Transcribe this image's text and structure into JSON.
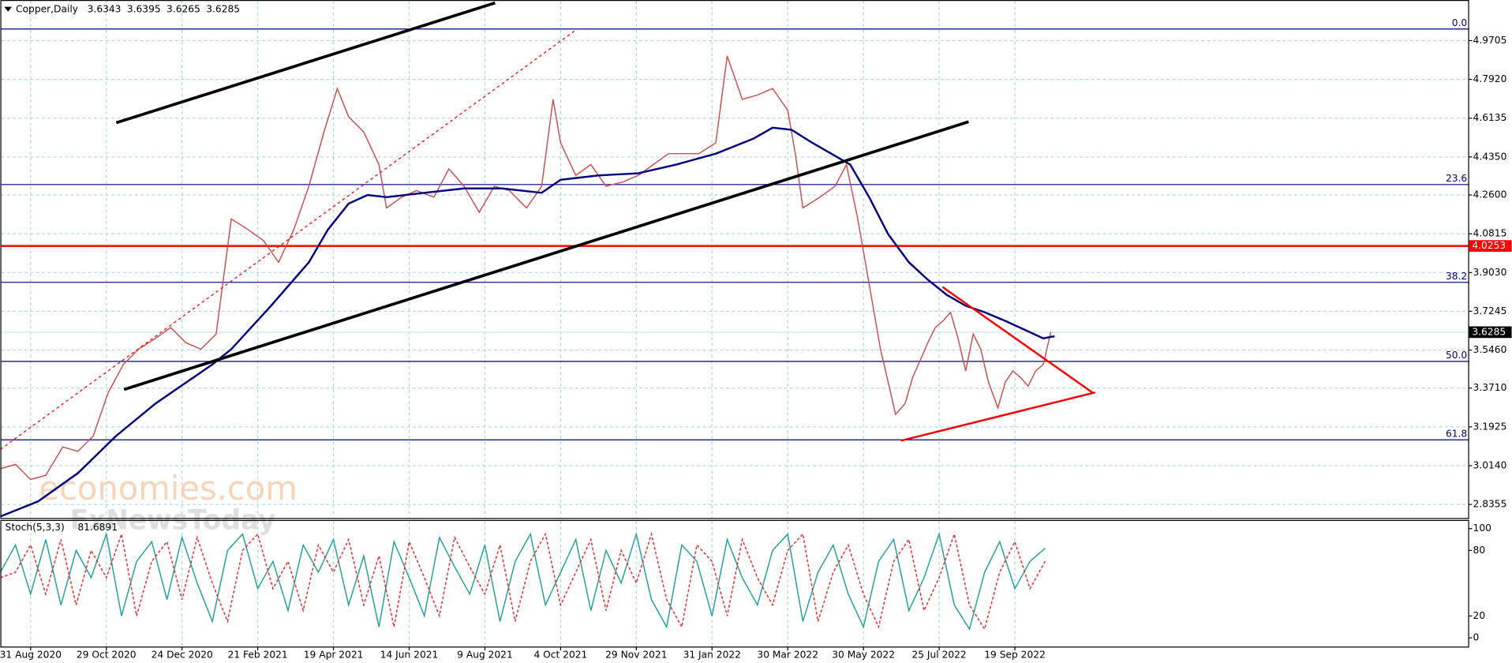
{
  "chart_data": [
    {
      "type": "line",
      "title": "Copper,Daily",
      "ohlc": [
        3.6343,
        3.6395,
        3.6265,
        3.6285
      ],
      "xlim": [
        0,
        776
      ],
      "ylim": [
        2.773,
        5.153
      ],
      "xticks": [
        {
          "value": 16,
          "label": "31 Aug 2020"
        },
        {
          "value": 56,
          "label": "29 Oct 2020"
        },
        {
          "value": 96,
          "label": "24 Dec 2020"
        },
        {
          "value": 136,
          "label": "21 Feb 2021"
        },
        {
          "value": 176,
          "label": "19 Apr 2021"
        },
        {
          "value": 216,
          "label": "14 Jun 2021"
        },
        {
          "value": 256,
          "label": "9 Aug 2021"
        },
        {
          "value": 296,
          "label": "4 Oct 2021"
        },
        {
          "value": 336,
          "label": "29 Nov 2021"
        },
        {
          "value": 376,
          "label": "31 Jan 2022"
        },
        {
          "value": 416,
          "label": "30 Mar 2022"
        },
        {
          "value": 456,
          "label": "30 May 2022"
        },
        {
          "value": 496,
          "label": "25 Jul 2022"
        },
        {
          "value": 536,
          "label": "19 Sep 2022"
        }
      ],
      "yticks": [
        4.9705,
        {
          "value": 4.792,
          "label": "4.7920"
        },
        4.6135,
        {
          "value": 4.435,
          "label": "4.4350"
        },
        {
          "value": 4.26,
          "label": "4.2600"
        },
        4.0815,
        {
          "value": 3.903,
          "label": "3.9030"
        },
        3.7245,
        {
          "value": 3.546,
          "label": "3.5460"
        },
        {
          "value": 3.371,
          "label": "3.3710"
        },
        3.1925,
        {
          "value": 3.014,
          "label": "3.0140"
        },
        2.8355
      ],
      "grid": true,
      "series": [
        {
          "color": "#c9504d",
          "x": [
            0,
            8,
            16,
            24,
            33,
            41,
            49,
            57,
            65,
            73,
            82,
            90,
            98,
            106,
            114,
            122,
            131,
            139,
            147,
            155,
            163,
            171,
            178,
            184,
            192,
            200,
            204,
            212,
            220,
            229,
            237,
            245,
            253,
            261,
            269,
            278,
            286,
            292,
            296,
            304,
            312,
            320,
            329,
            337,
            345,
            353,
            361,
            369,
            378,
            384,
            392,
            400,
            408,
            416,
            420,
            424,
            433,
            441,
            447,
            453,
            457,
            461,
            465,
            469,
            473,
            478,
            482,
            486,
            490,
            494,
            498,
            502,
            506,
            510,
            514,
            518,
            522,
            527,
            531,
            535,
            539,
            543,
            547,
            551,
            555
          ],
          "values": [
            3.0,
            3.02,
            2.95,
            2.97,
            3.1,
            3.08,
            3.15,
            3.35,
            3.48,
            3.55,
            3.6,
            3.65,
            3.58,
            3.55,
            3.62,
            4.15,
            4.1,
            4.05,
            3.95,
            4.1,
            4.3,
            4.55,
            4.75,
            4.62,
            4.55,
            4.4,
            4.2,
            4.25,
            4.28,
            4.25,
            4.38,
            4.3,
            4.18,
            4.3,
            4.28,
            4.2,
            4.3,
            4.7,
            4.5,
            4.35,
            4.4,
            4.3,
            4.32,
            4.35,
            4.4,
            4.45,
            4.45,
            4.45,
            4.5,
            4.9,
            4.7,
            4.72,
            4.75,
            4.65,
            4.45,
            4.2,
            4.25,
            4.3,
            4.4,
            4.15,
            3.95,
            3.75,
            3.55,
            3.4,
            3.25,
            3.3,
            3.42,
            3.5,
            3.58,
            3.65,
            3.68,
            3.72,
            3.6,
            3.45,
            3.62,
            3.55,
            3.4,
            3.28,
            3.4,
            3.45,
            3.42,
            3.38,
            3.45,
            3.48,
            3.63
          ]
        },
        {
          "color": "#000080",
          "x": [
            0,
            20,
            41,
            61,
            82,
            102,
            112,
            122,
            143,
            163,
            173,
            184,
            194,
            204,
            224,
            245,
            265,
            286,
            296,
            316,
            337,
            357,
            378,
            398,
            408,
            418,
            429,
            439,
            449,
            459,
            469,
            480,
            490,
            500,
            510,
            520,
            531,
            541,
            551,
            557
          ],
          "values": [
            2.78,
            2.85,
            2.98,
            3.15,
            3.3,
            3.42,
            3.48,
            3.55,
            3.75,
            3.95,
            4.1,
            4.22,
            4.26,
            4.25,
            4.27,
            4.29,
            4.29,
            4.27,
            4.33,
            4.35,
            4.36,
            4.4,
            4.45,
            4.52,
            4.57,
            4.56,
            4.5,
            4.45,
            4.4,
            4.25,
            4.08,
            3.95,
            3.87,
            3.8,
            3.75,
            3.72,
            3.68,
            3.64,
            3.6,
            3.61
          ]
        }
      ],
      "fib_levels": [
        {
          "label": "0.0",
          "price": 5.024
        },
        {
          "label": "23.6",
          "price": 4.308
        },
        {
          "label": "38.2",
          "price": 3.858
        },
        {
          "label": "50.0",
          "price": 3.494
        },
        {
          "label": "61.8",
          "price": 3.133
        }
      ],
      "level_line": {
        "value": 4.0253,
        "color": "#ff0000"
      },
      "watermark": [
        "economies.com",
        "FxNewsToday"
      ]
    },
    {
      "type": "line",
      "title": "Stoch(5,3,3)",
      "last": 81.6891,
      "xlim": [
        0,
        776
      ],
      "ylim": [
        -8,
        107
      ],
      "yticks": [
        100,
        80,
        20,
        0
      ],
      "x": [
        0,
        8,
        16,
        24,
        32,
        40,
        48,
        56,
        64,
        72,
        80,
        88,
        96,
        104,
        112,
        120,
        128,
        136,
        144,
        152,
        160,
        168,
        176,
        184,
        192,
        200,
        208,
        216,
        224,
        232,
        240,
        248,
        256,
        264,
        272,
        280,
        288,
        296,
        304,
        312,
        320,
        328,
        336,
        344,
        352,
        360,
        368,
        376,
        384,
        392,
        400,
        408,
        416,
        424,
        432,
        440,
        448,
        456,
        464,
        472,
        480,
        488,
        496,
        504,
        512,
        520,
        528,
        536,
        544,
        552
      ],
      "series": [
        {
          "color": "#20a0a0",
          "values": [
            60,
            85,
            40,
            90,
            30,
            80,
            55,
            95,
            20,
            70,
            88,
            35,
            92,
            50,
            15,
            80,
            95,
            45,
            70,
            25,
            85,
            60,
            90,
            30,
            75,
            10,
            88,
            55,
            20,
            92,
            65,
            40,
            85,
            15,
            70,
            95,
            30,
            60,
            90,
            25,
            80,
            50,
            95,
            35,
            10,
            85,
            70,
            20,
            90,
            55,
            30,
            80,
            95,
            15,
            60,
            85,
            40,
            10,
            70,
            90,
            25,
            55,
            95,
            30,
            8,
            60,
            88,
            45,
            70,
            82
          ]
        },
        {
          "color": "#e03030",
          "values": [
            55,
            60,
            85,
            40,
            90,
            30,
            80,
            55,
            95,
            20,
            70,
            88,
            35,
            92,
            50,
            15,
            80,
            95,
            45,
            70,
            25,
            85,
            60,
            90,
            30,
            75,
            10,
            88,
            55,
            20,
            92,
            65,
            40,
            85,
            15,
            70,
            95,
            30,
            60,
            90,
            25,
            80,
            50,
            95,
            35,
            10,
            85,
            70,
            20,
            90,
            55,
            30,
            80,
            95,
            15,
            60,
            85,
            40,
            10,
            70,
            90,
            25,
            55,
            95,
            30,
            8,
            60,
            88,
            45,
            70
          ]
        }
      ]
    }
  ]
}
